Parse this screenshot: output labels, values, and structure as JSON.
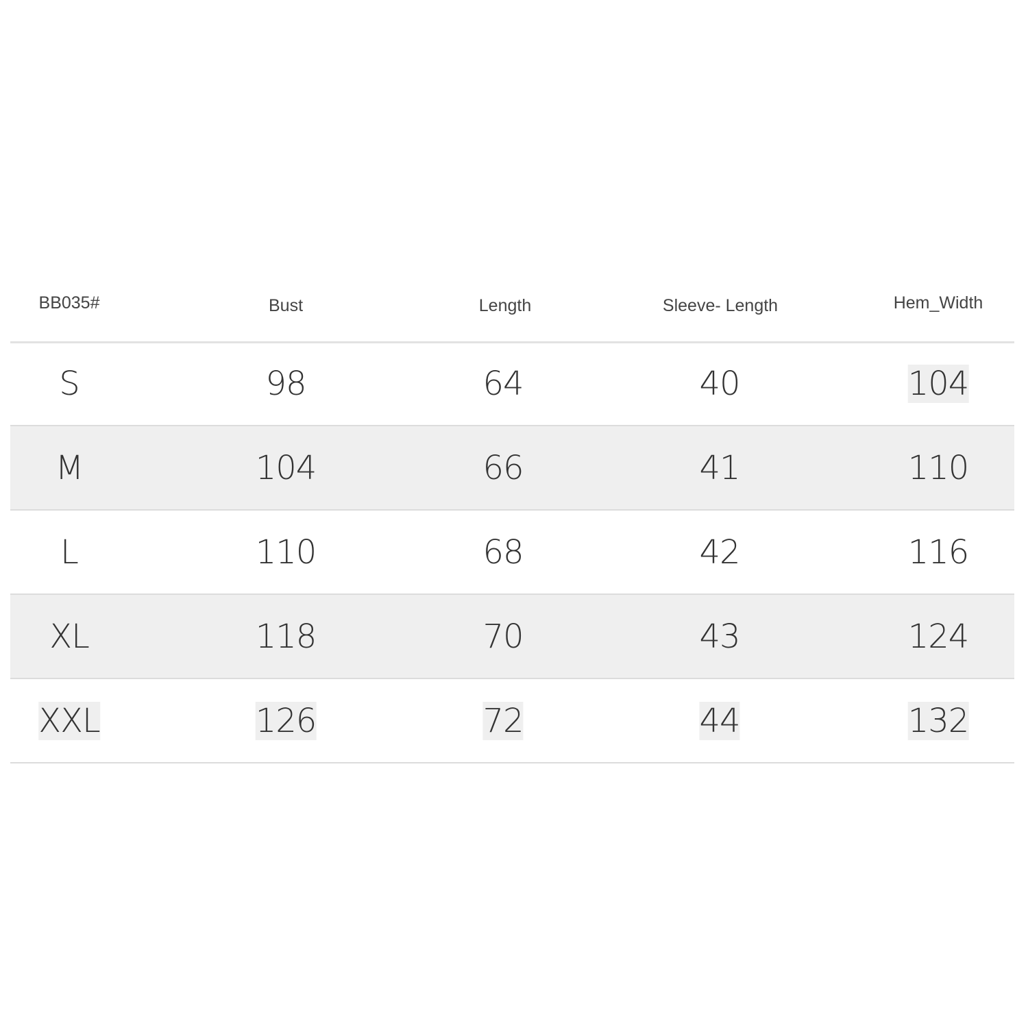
{
  "table": {
    "headers": [
      "BB035#",
      "Bust",
      "Length",
      "Sleeve- Length",
      "Hem_Width"
    ],
    "rows": [
      [
        "S",
        "98",
        "64",
        "40",
        "104"
      ],
      [
        "M",
        "104",
        "66",
        "41",
        "110"
      ],
      [
        "L",
        "110",
        "68",
        "42",
        "116"
      ],
      [
        "XL",
        "118",
        "70",
        "43",
        "124"
      ],
      [
        "XXL",
        "126",
        "72",
        "44",
        "132"
      ]
    ]
  },
  "colors": {
    "alt_row": "#efefef",
    "text": "#333333",
    "divider": "#dcdcdc"
  }
}
